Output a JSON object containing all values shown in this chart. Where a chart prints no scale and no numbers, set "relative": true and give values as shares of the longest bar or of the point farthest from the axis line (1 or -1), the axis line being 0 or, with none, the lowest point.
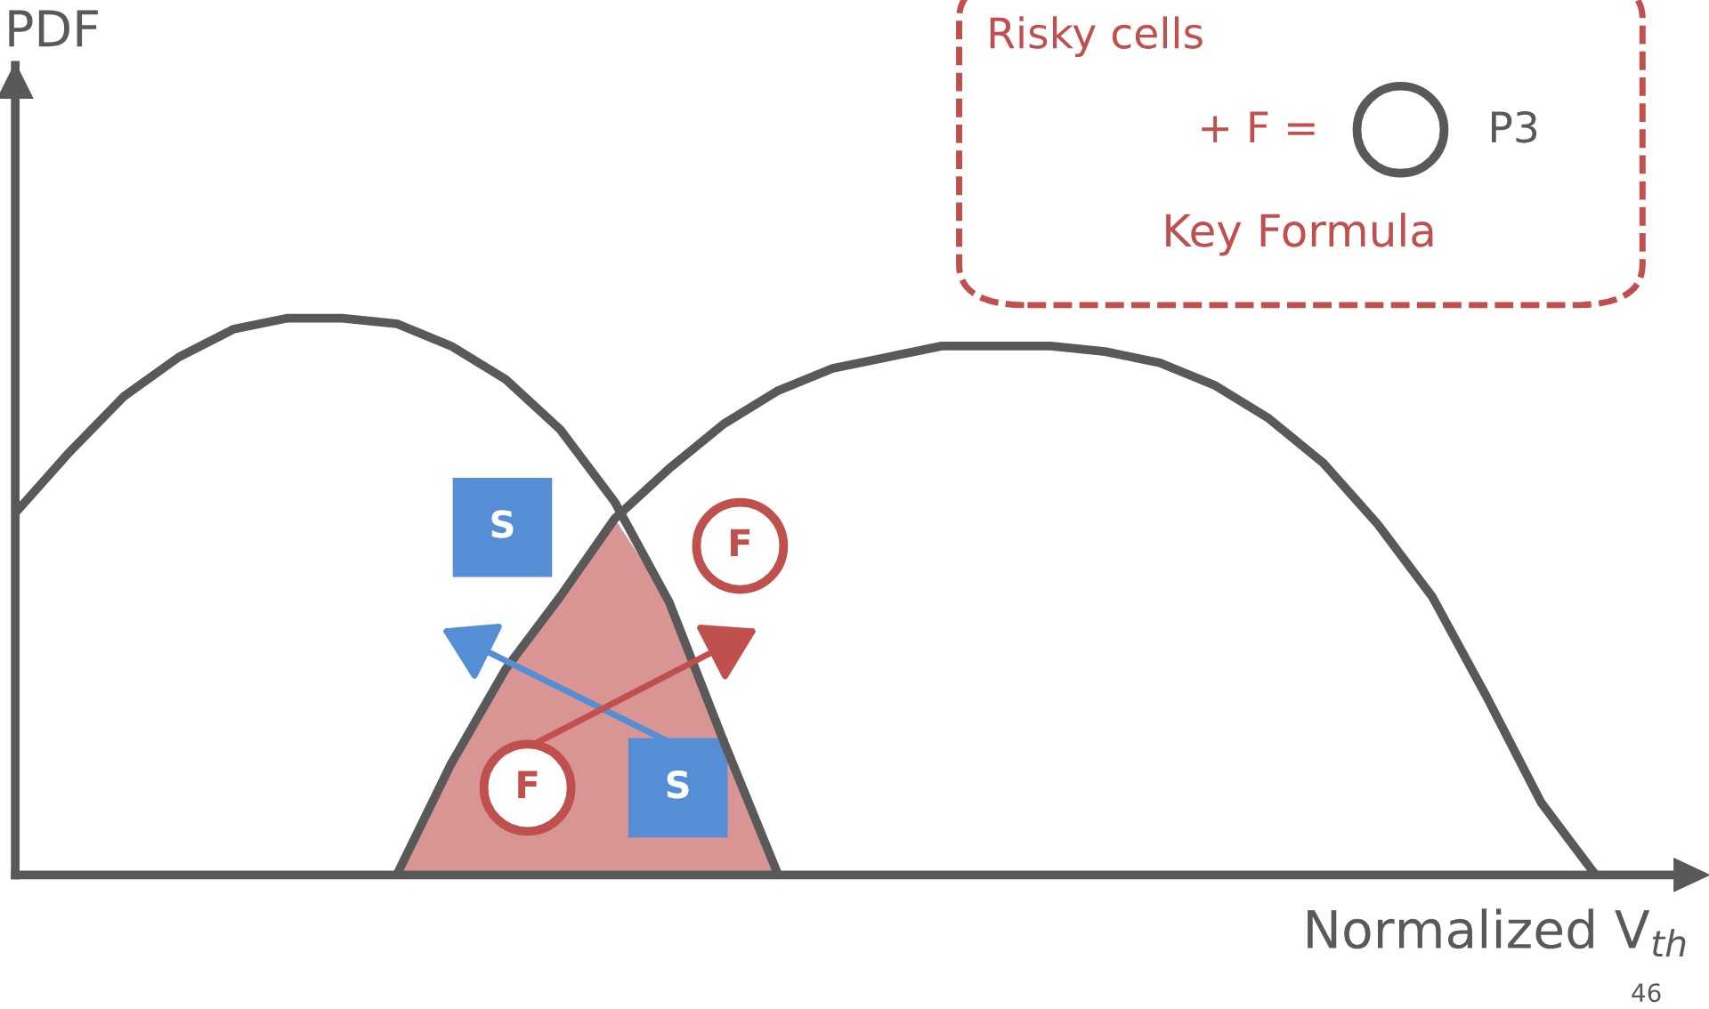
{
  "chart_data": {
    "type": "line",
    "relative": true,
    "xlabel": "Normalized V$_{th}$",
    "categories": [
      null,
      null,
      null,
      null,
      null,
      null,
      null,
      null,
      null,
      null,
      null,
      null,
      null,
      null,
      null,
      null,
      null,
      null,
      null,
      null,
      null,
      null,
      null,
      null,
      null,
      null,
      null,
      null,
      null,
      null,
      null
    ],
    "series": [
      {
        "color": "#595959",
        "values": [
          0.65,
          0.76,
          0.86,
          0.93,
          0.98,
          1.0,
          1.0,
          0.99,
          0.95,
          0.89,
          0.8,
          0.67,
          0.49,
          0.24,
          0,
          null,
          null,
          null,
          null,
          null,
          null,
          null,
          null,
          null,
          null,
          null,
          null,
          null,
          null,
          null,
          null
        ]
      },
      {
        "color": "#595959",
        "values": [
          null,
          null,
          null,
          null,
          null,
          null,
          null,
          0,
          0.2,
          0.37,
          0.5,
          0.64,
          0.73,
          0.81,
          0.87,
          0.91,
          0.93,
          0.95,
          0.95,
          0.95,
          0.94,
          0.92,
          0.88,
          0.82,
          0.74,
          0.63,
          0.5,
          0.32,
          0.13,
          0,
          null
        ]
      }
    ],
    "annotations": [
      "S",
      "F",
      "F",
      "S",
      "Risky cells",
      "+ F =",
      "P3",
      "Key Formula",
      "46",
      "PDF"
    ],
    "grid": false,
    "legend": false,
    "marker": "none",
    "line_style": "solid"
  }
}
